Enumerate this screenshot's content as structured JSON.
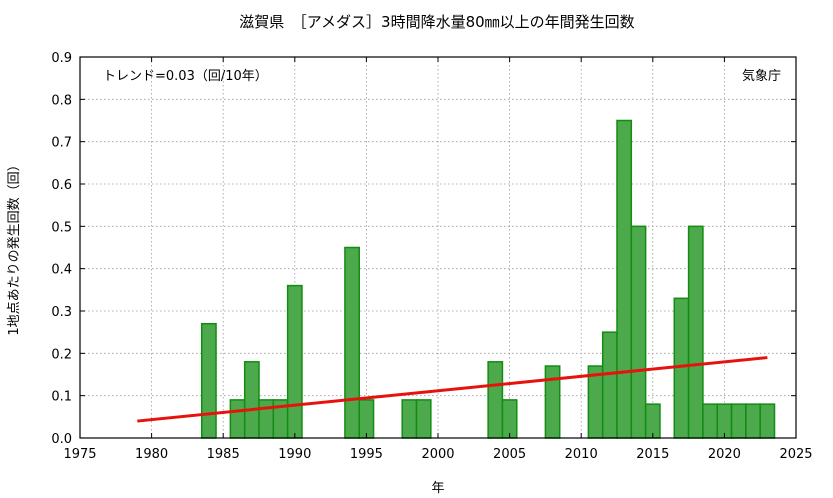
{
  "chart_data": {
    "type": "bar",
    "title": "滋賀県　［アメダス］3時間降水量80㎜以上の年間発生回数",
    "xlabel": "年",
    "ylabel": "1地点あたりの発生回数（回）",
    "trend_label": "トレンド=0.03（回/10年）",
    "source_label": "気象庁",
    "xlim": [
      1975,
      2025
    ],
    "ylim": [
      0,
      0.9
    ],
    "x_ticks": [
      1975,
      1980,
      1985,
      1990,
      1995,
      2000,
      2005,
      2010,
      2015,
      2020,
      2025
    ],
    "x_tick_labels": [
      "1975",
      "1980",
      "1985",
      "1990",
      "1995",
      "2000",
      "2005",
      "2010",
      "2015",
      "2020",
      "2025"
    ],
    "y_ticks": [
      0,
      0.1,
      0.2,
      0.3,
      0.4,
      0.5,
      0.6,
      0.7,
      0.8,
      0.9
    ],
    "y_tick_labels": [
      "0.0",
      "0.1",
      "0.2",
      "0.3",
      "0.4",
      "0.5",
      "0.6",
      "0.7",
      "0.8",
      "0.9"
    ],
    "grid": true,
    "bar_color": "#4caa4c",
    "bar_edge_color": "#138c13",
    "trend_color": "#e8120c",
    "series": [
      {
        "x": [
          1979,
          1980,
          1981,
          1982,
          1983,
          1984,
          1985,
          1986,
          1987,
          1988,
          1989,
          1990,
          1991,
          1992,
          1993,
          1994,
          1995,
          1996,
          1997,
          1998,
          1999,
          2000,
          2001,
          2002,
          2003,
          2004,
          2005,
          2006,
          2007,
          2008,
          2009,
          2010,
          2011,
          2012,
          2013,
          2014,
          2015,
          2016,
          2017,
          2018,
          2019,
          2020,
          2021,
          2022,
          2023
        ],
        "values": [
          0,
          0,
          0,
          0,
          0,
          0.27,
          0,
          0.09,
          0.18,
          0.09,
          0.09,
          0.36,
          0,
          0,
          0,
          0.45,
          0.09,
          0,
          0,
          0.09,
          0.09,
          0,
          0,
          0,
          0,
          0.18,
          0.09,
          0,
          0,
          0.17,
          0,
          0,
          0.17,
          0.25,
          0.75,
          0.5,
          0.08,
          0,
          0.33,
          0.5,
          0.08,
          0.08,
          0.08,
          0.08,
          0.08
        ]
      }
    ],
    "trend_line": {
      "x": [
        1979,
        2023
      ],
      "y": [
        0.04,
        0.19
      ]
    }
  }
}
